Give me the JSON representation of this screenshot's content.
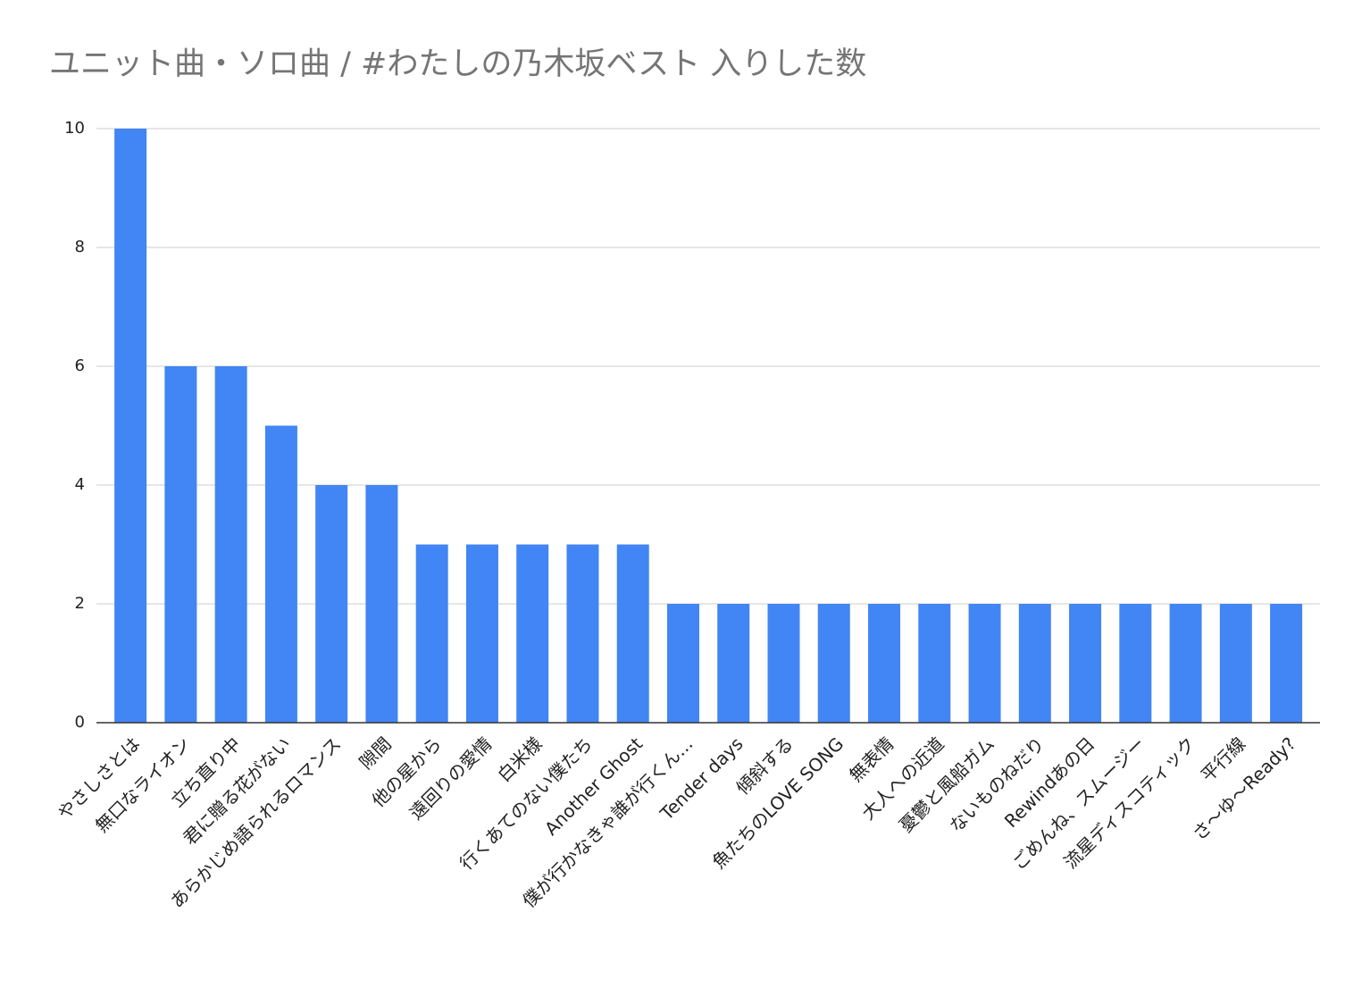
{
  "chart_data": {
    "type": "bar",
    "title": "ユニット曲・ソロ曲 / #わたしの乃木坂ベスト 入りした数",
    "categories": [
      "やさしさとは",
      "無口なライオン",
      "立ち直り中",
      "君に贈る花がない",
      "あらかじめ語られるロマンス",
      "隙間",
      "他の星から",
      "遠回りの愛情",
      "白米様",
      "行くあてのない僕たち",
      "Another Ghost",
      "僕が行かなきゃ誰が行くん...",
      "Tender days",
      "傾斜する",
      "魚たちのLOVE SONG",
      "無表情",
      "大人への近道",
      "憂鬱と風船ガム",
      "ないものねだり",
      "Rewindあの日",
      "ごめんね、スムージー",
      "流星ディスコティック",
      "平行線",
      "さ〜ゆ〜Ready?"
    ],
    "values": [
      10,
      6,
      6,
      5,
      4,
      4,
      3,
      3,
      3,
      3,
      3,
      2,
      2,
      2,
      2,
      2,
      2,
      2,
      2,
      2,
      2,
      2,
      2,
      2
    ],
    "color": "#4285f4",
    "ylim": [
      0,
      10
    ],
    "yticks": [
      0,
      2,
      4,
      6,
      8,
      10
    ],
    "grid": true
  }
}
